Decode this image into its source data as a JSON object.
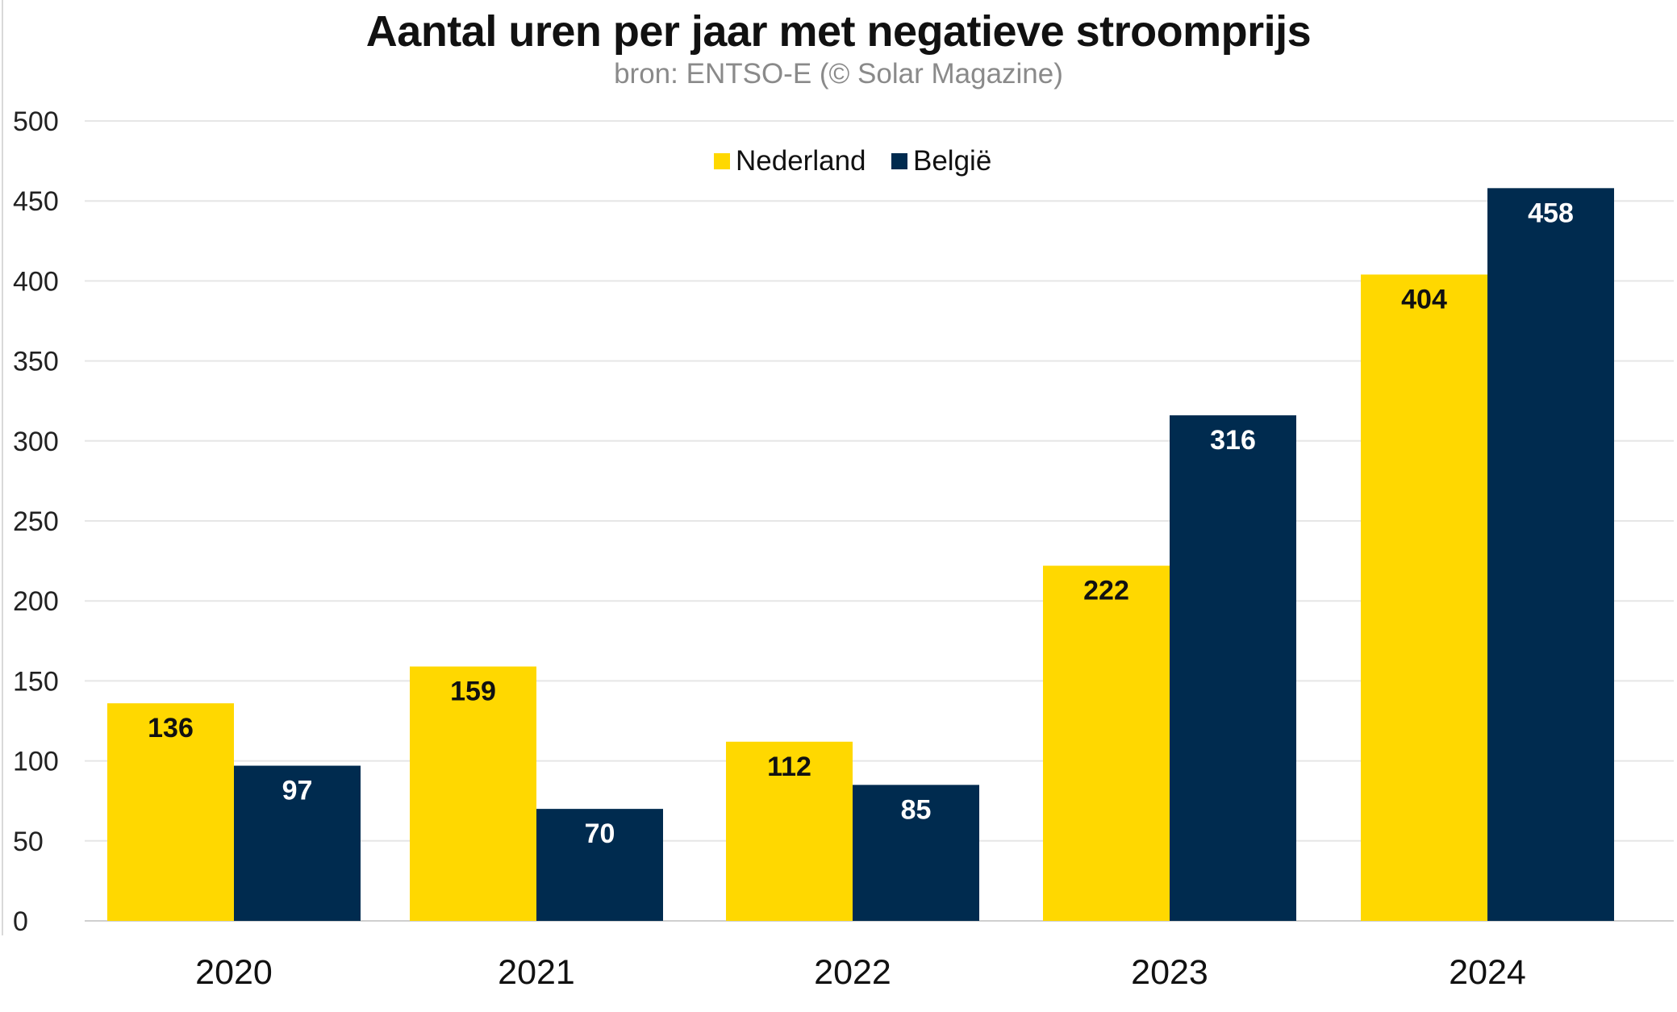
{
  "chart_data": {
    "type": "bar",
    "title": "Aantal uren per jaar met negatieve stroomprijs",
    "subtitle": "bron: ENTSO-E (© Solar Magazine)",
    "categories": [
      "2020",
      "2021",
      "2022",
      "2023",
      "2024"
    ],
    "series": [
      {
        "name": "Nederland",
        "color": "#FFD800",
        "label_color": "#111111",
        "values": [
          136,
          159,
          112,
          222,
          404
        ]
      },
      {
        "name": "België",
        "color": "#002B4F",
        "label_color": "#ffffff",
        "values": [
          97,
          70,
          85,
          316,
          458
        ]
      }
    ],
    "ylim": [
      0,
      500
    ],
    "yticks": [
      0,
      50,
      100,
      150,
      200,
      250,
      300,
      350,
      400,
      450,
      500
    ],
    "xlabel": "",
    "ylabel": "",
    "grid": true,
    "legend": "top-center",
    "data_labels": true
  }
}
